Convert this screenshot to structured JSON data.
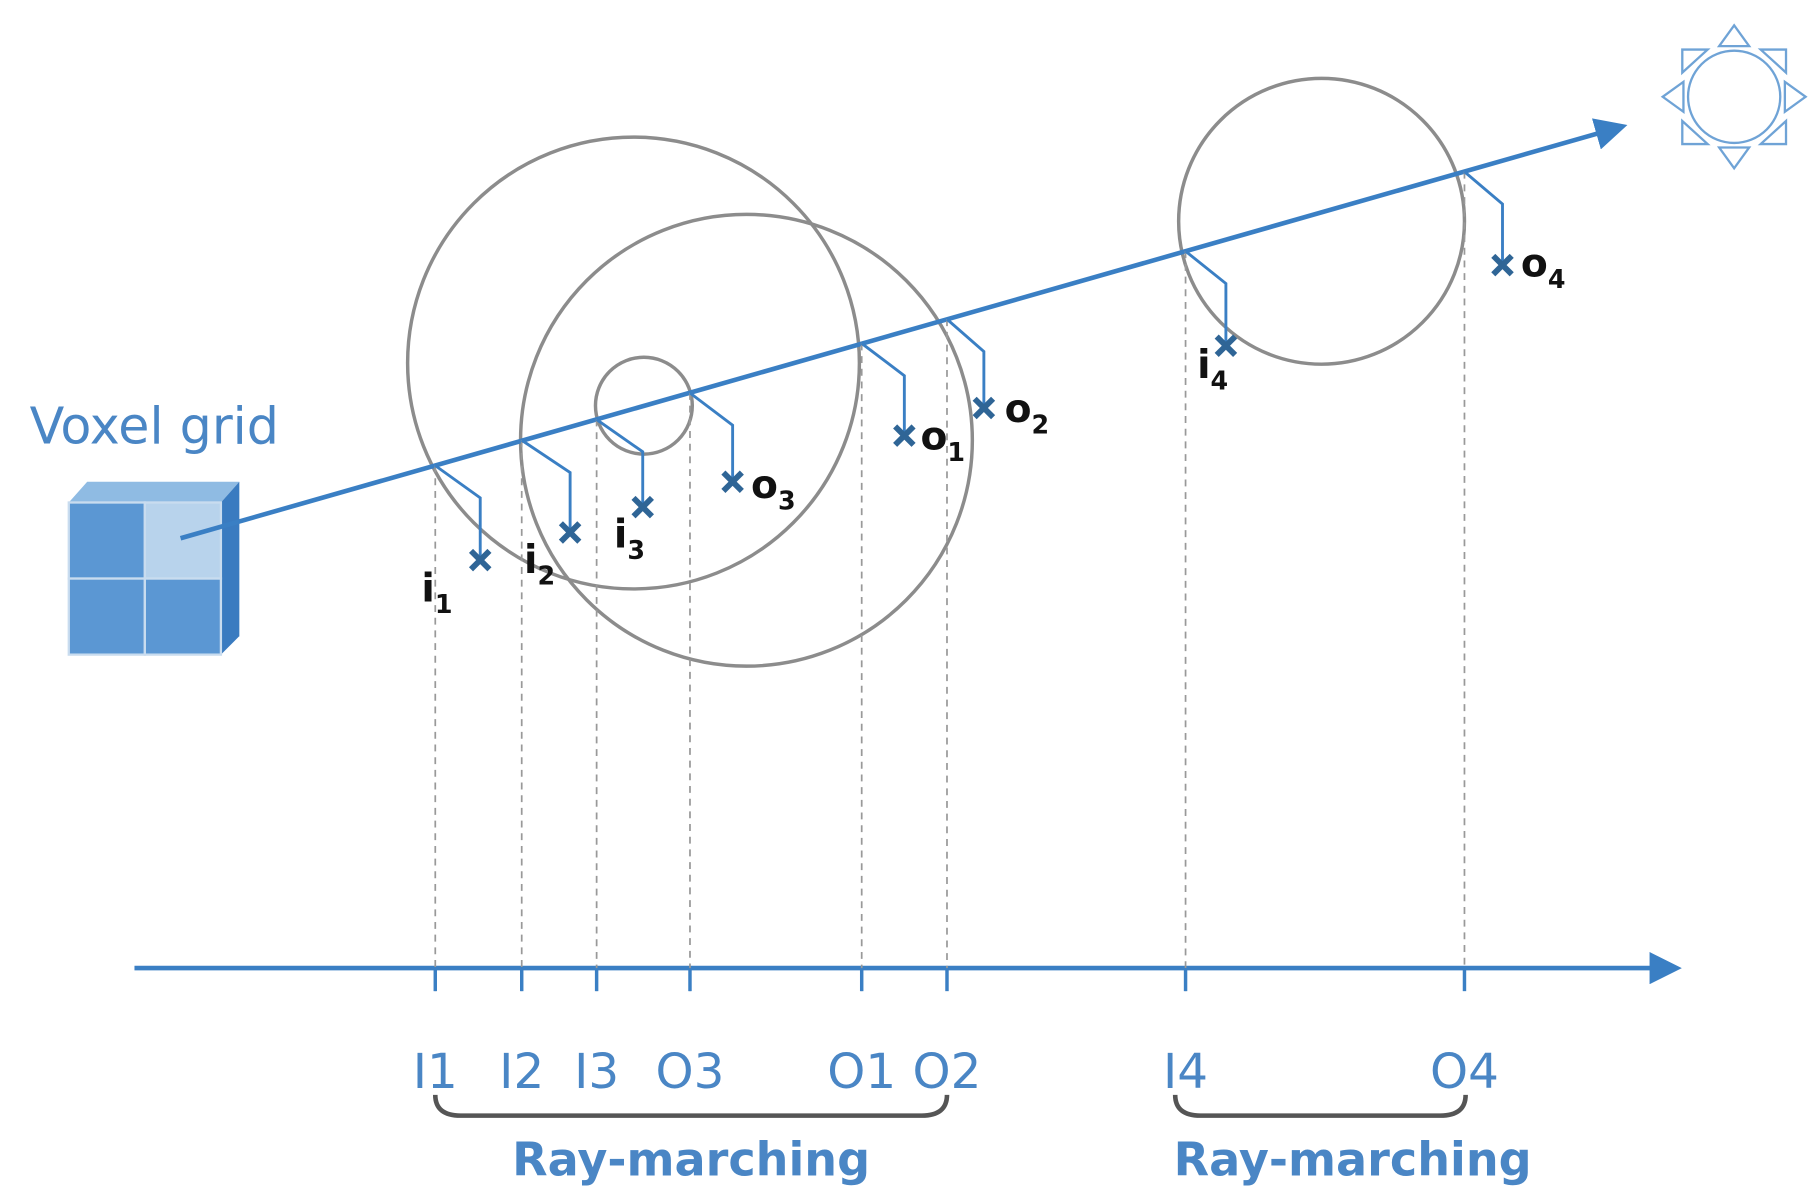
{
  "title": "Voxel grid",
  "points": [
    {
      "base": "i",
      "sub": "1"
    },
    {
      "base": "i",
      "sub": "2"
    },
    {
      "base": "i",
      "sub": "3"
    },
    {
      "base": "o",
      "sub": "3"
    },
    {
      "base": "o",
      "sub": "1"
    },
    {
      "base": "o",
      "sub": "2"
    },
    {
      "base": "i",
      "sub": "4"
    },
    {
      "base": "o",
      "sub": "4"
    }
  ],
  "axis_labels": [
    "I1",
    "I2",
    "I3",
    "O3",
    "O1",
    "O2",
    "I4",
    "O4"
  ],
  "brackets": [
    "Ray-marching",
    "Ray-marching"
  ]
}
